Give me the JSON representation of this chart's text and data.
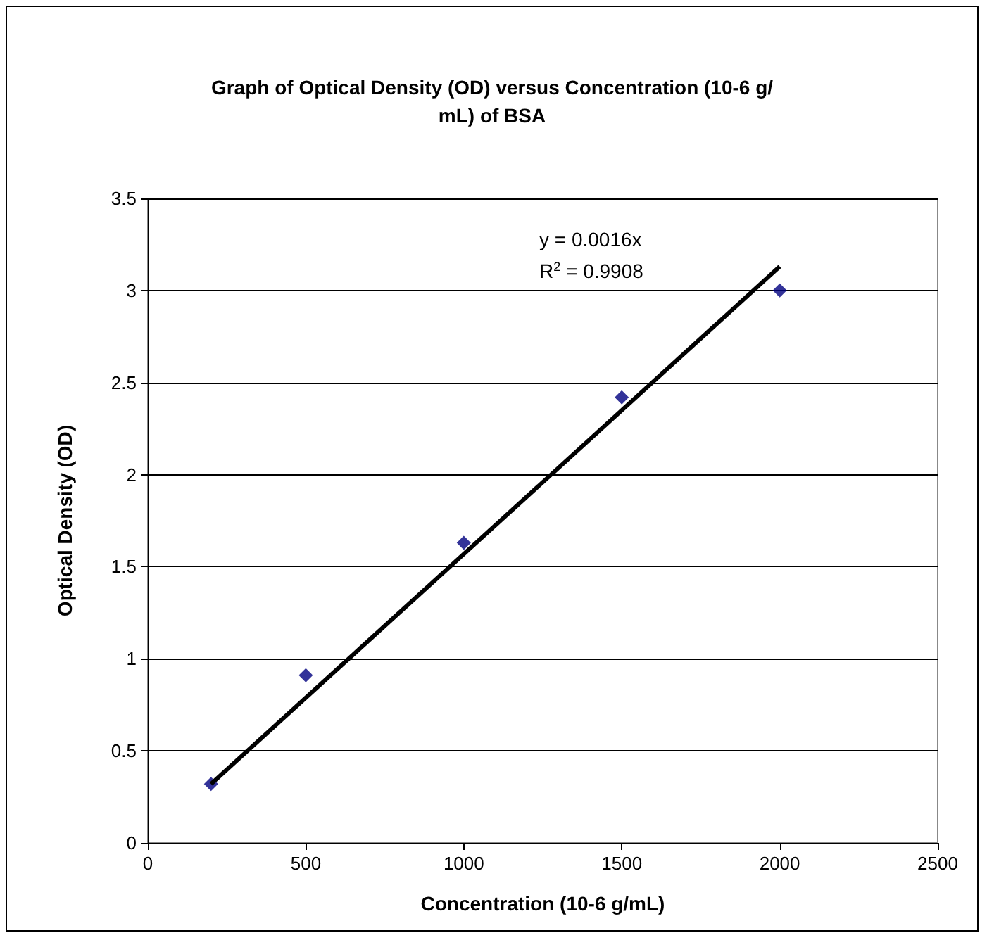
{
  "chart_data": {
    "type": "scatter",
    "title": "Graph of Optical Density (OD) versus Concentration (10-6 g/mL) of BSA",
    "xlabel": "Concentration (10-6 g/mL)",
    "ylabel": "Optical Density (OD)",
    "series": [
      {
        "type": "scatter",
        "color": "#000080",
        "marker": "diamond",
        "x": [
          200,
          500,
          1000,
          1500,
          2000
        ],
        "values": [
          0.32,
          0.91,
          1.63,
          2.42,
          3.0
        ]
      },
      {
        "type": "line",
        "color": "#000000",
        "marker": "none",
        "x": [
          200,
          2000
        ],
        "values": [
          0.32,
          3.13
        ]
      }
    ],
    "annotations": [
      "y = 0.0016x",
      "R$^{2}$ = 0.9908"
    ],
    "xlim": [
      0,
      2500
    ],
    "xticks": [
      0,
      500,
      1000,
      1500,
      2000,
      2500
    ],
    "ylim": [
      0,
      3.5
    ],
    "yticks": [
      0,
      0.5,
      1,
      1.5,
      2,
      2.5,
      3,
      3.5
    ],
    "grid": "y"
  }
}
